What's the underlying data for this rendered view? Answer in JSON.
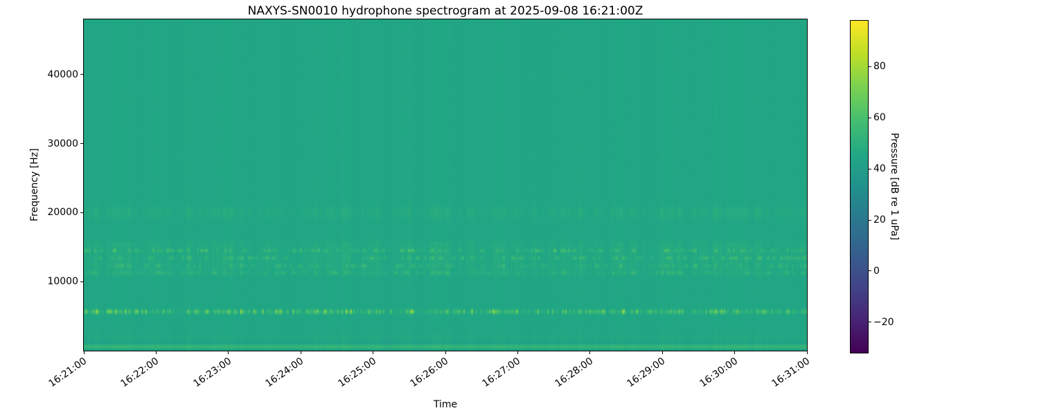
{
  "chart_data": {
    "type": "heatmap",
    "subtype": "spectrogram",
    "title": "NAXYS-SN0010 hydrophone spectrogram at 2025-09-08 16:21:00Z",
    "xlabel": "Time",
    "ylabel": "Frequency [Hz]",
    "x_ticks": [
      "16:21:00",
      "16:22:00",
      "16:23:00",
      "16:24:00",
      "16:25:00",
      "16:26:00",
      "16:27:00",
      "16:28:00",
      "16:29:00",
      "16:30:00",
      "16:31:00"
    ],
    "x_tick_interval": "1 minute",
    "y_tick_labels": [
      "10000",
      "20000",
      "30000",
      "40000"
    ],
    "y_tick_values": [
      10000,
      20000,
      30000,
      40000
    ],
    "y_range_hz": [
      0,
      48000
    ],
    "colormap": "viridis",
    "grid": false,
    "legend": null,
    "colorbar": {
      "label": "Pressure [dB re 1 uPa]",
      "tick_labels": [
        "80",
        "60",
        "40",
        "20",
        "0",
        "−20"
      ],
      "tick_values": [
        80,
        60,
        40,
        20,
        0,
        -20
      ],
      "range_db": [
        -32,
        98
      ],
      "position": "right"
    },
    "spectrogram_features": {
      "background_db": 44.5,
      "tonal_line": {
        "freq_hz": 5650,
        "sigma_hz": 230,
        "peak_db_above_bg": 27
      },
      "mid_band": {
        "range_hz": [
          10800,
          15800
        ],
        "rows_hz": [
          14500,
          13400,
          12300,
          11300
        ],
        "row_amp_db": [
          11,
          9,
          8,
          6
        ]
      },
      "faint_band_hz": 20000,
      "low_stripe_hz": [
        350,
        900
      ],
      "low_texture_max_hz": 2600,
      "description": "Teal-green broadband background (~45 dB) with vertical time striations; bright speckled tonal line near 5.6 kHz; dashed speckle rows between ~11-15.5 kHz; faint band near 20 kHz; bright narrow stripe below 1 kHz at the bottom edge."
    },
    "colors": {
      "plot_background": "#22a685",
      "colorbar_top": "#fde725",
      "colorbar_bottom": "#440154",
      "text": "#000000",
      "figure_background": "#ffffff"
    }
  }
}
